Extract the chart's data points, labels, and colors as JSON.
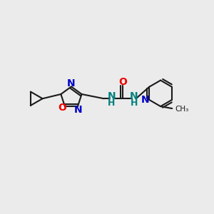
{
  "bg_color": "#ebebeb",
  "bond_color": "#1a1a1a",
  "N_color": "#0000cc",
  "O_color": "#ee0000",
  "NH_color": "#008080",
  "figsize": [
    3.0,
    3.0
  ],
  "dpi": 100,
  "xlim": [
    0,
    10
  ],
  "ylim": [
    0,
    10
  ]
}
